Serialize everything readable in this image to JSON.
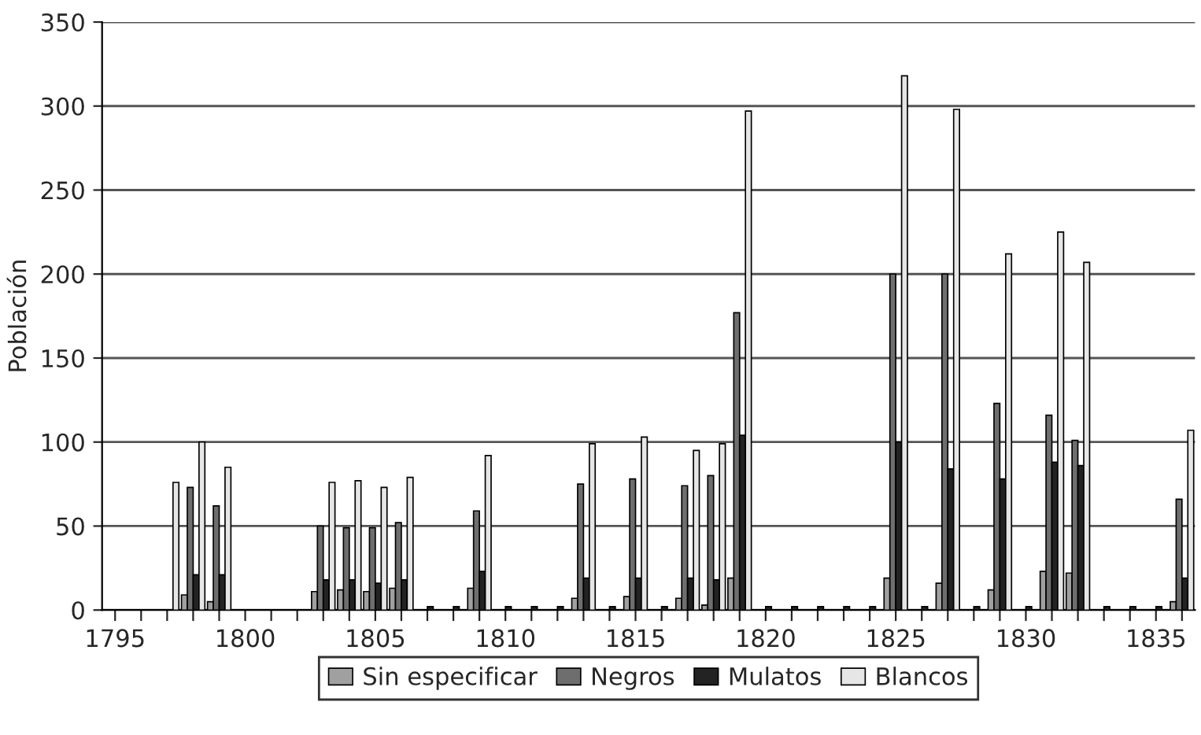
{
  "chart_data": {
    "type": "bar",
    "ylabel": "Población",
    "categories": [
      "1795",
      null,
      null,
      null,
      null,
      "1800",
      null,
      null,
      null,
      null,
      "1805",
      null,
      null,
      null,
      null,
      "1810",
      null,
      null,
      null,
      null,
      "1815",
      null,
      null,
      null,
      null,
      "1820",
      null,
      null,
      null,
      null,
      "1825",
      null,
      null,
      null,
      null,
      "1830",
      null,
      null,
      null,
      null,
      "1835",
      null
    ],
    "series": [
      {
        "name": "Sin especificar",
        "color": "#a0a0a0",
        "values": [
          null,
          null,
          null,
          9,
          5,
          null,
          null,
          null,
          11,
          12,
          11,
          13,
          null,
          null,
          13,
          null,
          null,
          null,
          7,
          null,
          8,
          null,
          7,
          3,
          19,
          null,
          null,
          null,
          null,
          null,
          19,
          null,
          16,
          null,
          12,
          null,
          23,
          22,
          null,
          null,
          null,
          5
        ]
      },
      {
        "name": "Negros",
        "color": "#6e6e6e",
        "values": [
          null,
          null,
          null,
          73,
          62,
          null,
          null,
          null,
          50,
          49,
          49,
          52,
          null,
          null,
          59,
          null,
          null,
          null,
          75,
          null,
          78,
          null,
          74,
          80,
          177,
          null,
          null,
          null,
          null,
          null,
          200,
          null,
          200,
          null,
          123,
          null,
          116,
          101,
          null,
          null,
          null,
          66
        ]
      },
      {
        "name": "Mulatos",
        "color": "#232323",
        "values": [
          null,
          null,
          null,
          21,
          21,
          null,
          null,
          null,
          18,
          18,
          16,
          18,
          2,
          2,
          23,
          2,
          2,
          2,
          19,
          2,
          19,
          2,
          19,
          18,
          104,
          2,
          2,
          2,
          2,
          2,
          100,
          2,
          84,
          2,
          78,
          2,
          88,
          86,
          2,
          2,
          2,
          19
        ]
      },
      {
        "name": "Blancos",
        "color": "#e6e6e6",
        "values": [
          null,
          null,
          76,
          100,
          85,
          null,
          null,
          null,
          76,
          77,
          73,
          79,
          null,
          null,
          92,
          null,
          null,
          null,
          99,
          null,
          103,
          null,
          95,
          99,
          297,
          null,
          null,
          null,
          null,
          null,
          318,
          null,
          298,
          null,
          212,
          null,
          225,
          207,
          null,
          null,
          null,
          107
        ]
      }
    ],
    "ylim": [
      0,
      350
    ],
    "yticks": [
      0,
      50,
      100,
      150,
      200,
      250,
      300,
      350
    ],
    "grid": "y",
    "legend": "bottom"
  }
}
